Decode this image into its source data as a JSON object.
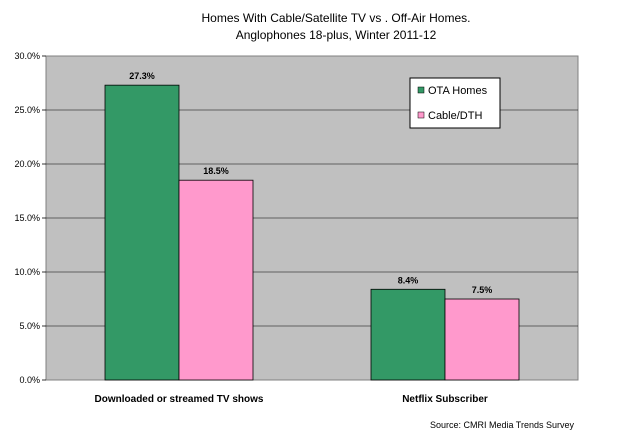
{
  "chart_data": {
    "type": "bar",
    "title": "Homes With Cable/Satellite TV vs . Off-Air Homes.",
    "subtitle": "Anglophones 18-plus, Winter 2011-12",
    "categories": [
      "Downloaded or streamed TV shows",
      "Netflix Subscriber"
    ],
    "series": [
      {
        "name": "OTA Homes",
        "values": [
          27.3,
          8.4
        ],
        "labels": [
          "27.3%",
          "8.4%"
        ],
        "color": "#339966"
      },
      {
        "name": "Cable/DTH",
        "values": [
          18.5,
          7.5
        ],
        "labels": [
          "18.5%",
          "7.5%"
        ],
        "color": "#ff99cc"
      }
    ],
    "ylim": [
      0,
      30
    ],
    "yticks": [
      "0.0%",
      "5.0%",
      "10.0%",
      "15.0%",
      "20.0%",
      "25.0%",
      "30.0%"
    ],
    "grid": true,
    "legend_position": "top-right",
    "plot_background": "#c0c0c0",
    "source": "Source: CMRI Media Trends Survey"
  }
}
